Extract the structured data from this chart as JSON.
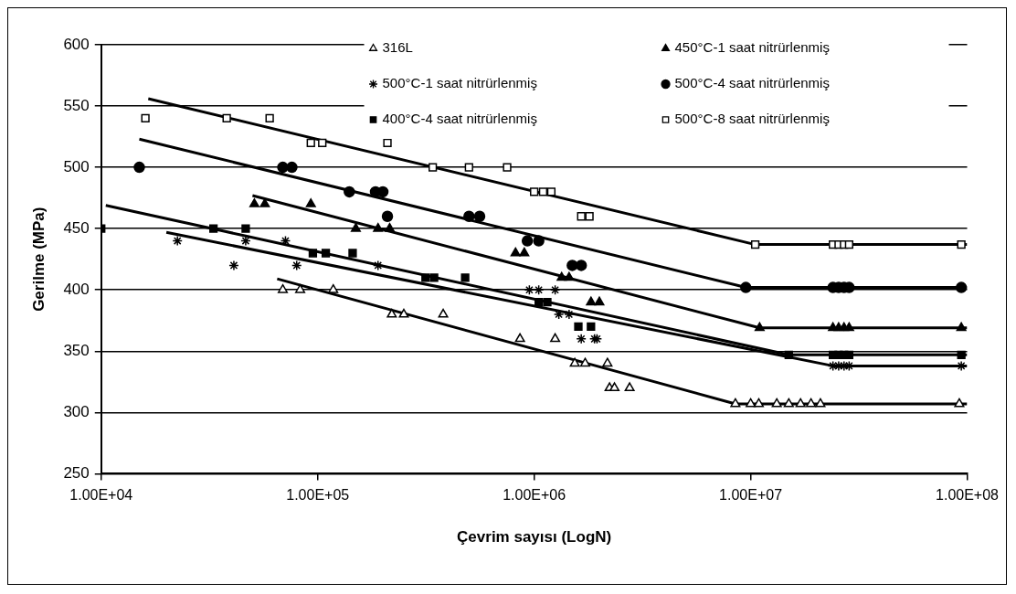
{
  "chart_data": {
    "type": "scatter",
    "xlabel": "Çevrim sayısı (LogN)",
    "ylabel": "Gerilme (MPa)",
    "log": "x",
    "xlim": [
      10000,
      100000000
    ],
    "xticks": [
      {
        "value": 10000,
        "label": "1.00E+04"
      },
      {
        "value": 100000,
        "label": "1.00E+05"
      },
      {
        "value": 1000000,
        "label": "1.00E+06"
      },
      {
        "value": 10000000,
        "label": "1.00E+07"
      },
      {
        "value": 100000000,
        "label": "1.00E+08"
      }
    ],
    "ylim": [
      250,
      600
    ],
    "yticks": [
      250,
      300,
      350,
      400,
      450,
      500,
      550,
      600
    ],
    "grid": "y",
    "legend": "top right",
    "series": [
      {
        "name": "316L",
        "color": "#ffffff",
        "marker": "triangle",
        "x": [
          69000,
          83000,
          118000,
          220000,
          250000,
          380000,
          860000,
          1250000,
          1540000,
          1720000,
          2180000,
          2230000,
          2350000,
          2760000,
          8500000,
          10000000,
          10900000,
          13200000,
          15000000,
          17000000,
          19000000,
          21000000,
          92000000
        ],
        "values": [
          400,
          400,
          400,
          380,
          380,
          380,
          360,
          360,
          340,
          340,
          340,
          320,
          320,
          320,
          307,
          307,
          307,
          307,
          307,
          307,
          307,
          307,
          307
        ]
      },
      {
        "name": "450°C-1 saat nitrürlenmiş",
        "color": "#000000",
        "marker": "triangle",
        "x": [
          51000,
          57000,
          93000,
          150000,
          190000,
          215000,
          820000,
          900000,
          1340000,
          1450000,
          1830000,
          2000000,
          11000000,
          24000000,
          25500000,
          27000000,
          28500000,
          94000000
        ],
        "values": [
          470,
          470,
          470,
          450,
          450,
          450,
          430,
          430,
          410,
          410,
          390,
          390,
          369,
          369,
          369,
          369,
          369,
          369
        ]
      },
      {
        "name": "500°C-1 saat nitrürlenmiş",
        "color": "#000000",
        "marker": "cross",
        "x": [
          22500,
          41000,
          46500,
          71000,
          80000,
          190000,
          950000,
          1050000,
          1250000,
          1300000,
          1450000,
          1650000,
          1900000,
          1950000,
          24000000,
          25500000,
          27000000,
          28500000,
          94000000
        ],
        "values": [
          440,
          420,
          440,
          440,
          420,
          420,
          400,
          400,
          400,
          380,
          380,
          360,
          360,
          360,
          338,
          338,
          338,
          338,
          338
        ]
      },
      {
        "name": "500°C-4 saat nitrürlenmiş",
        "color": "#000000",
        "marker": "circle",
        "x": [
          15000,
          69000,
          76000,
          140000,
          185000,
          200000,
          210000,
          500000,
          560000,
          930000,
          1050000,
          1500000,
          1650000,
          9500000,
          24000000,
          25500000,
          27000000,
          28500000,
          94000000
        ],
        "values": [
          500,
          500,
          500,
          480,
          480,
          480,
          460,
          460,
          460,
          440,
          440,
          420,
          420,
          402,
          402,
          402,
          402,
          402,
          402
        ]
      },
      {
        "name": "400°C-4 saat nitrürlenmiş",
        "color": "#000000",
        "marker": "square",
        "x": [
          10000,
          33000,
          46500,
          95000,
          109000,
          145000,
          315000,
          345000,
          480000,
          1050000,
          1150000,
          1600000,
          1830000,
          15000000,
          24000000,
          25500000,
          27000000,
          28500000,
          94000000
        ],
        "values": [
          450,
          450,
          450,
          430,
          430,
          430,
          410,
          410,
          410,
          390,
          390,
          370,
          370,
          347,
          347,
          347,
          347,
          347,
          347
        ]
      },
      {
        "name": "500°C-8 saat nitrürlenmiş",
        "color": "#ffffff",
        "marker": "square",
        "x": [
          16000,
          38000,
          60000,
          93000,
          105000,
          210000,
          340000,
          500000,
          750000,
          1000000,
          1100000,
          1200000,
          1650000,
          1800000,
          10500000,
          24000000,
          25500000,
          27000000,
          28500000,
          94000000
        ],
        "values": [
          540,
          540,
          540,
          520,
          520,
          520,
          500,
          500,
          500,
          480,
          480,
          480,
          460,
          460,
          437,
          437,
          437,
          437,
          437,
          437
        ]
      },
      {
        "type": "line",
        "color": "#000000",
        "marker": "none",
        "x": [
          65000,
          8500000,
          100000000
        ],
        "values": [
          409,
          307,
          307
        ]
      },
      {
        "type": "line",
        "color": "#000000",
        "marker": "none",
        "x": [
          50000,
          11000000,
          100000000
        ],
        "values": [
          477,
          369,
          369
        ]
      },
      {
        "type": "line",
        "color": "#000000",
        "marker": "none",
        "x": [
          20000,
          24000000,
          100000000
        ],
        "values": [
          447,
          338,
          338
        ]
      },
      {
        "type": "line",
        "color": "#000000",
        "marker": "none",
        "x": [
          15000,
          9500000,
          100000000
        ],
        "values": [
          523,
          402,
          402
        ]
      },
      {
        "type": "line",
        "color": "#000000",
        "marker": "none",
        "x": [
          10500,
          15000000,
          100000000
        ],
        "values": [
          469,
          347,
          347
        ]
      },
      {
        "type": "line",
        "color": "#000000",
        "marker": "none",
        "x": [
          16500,
          10500000,
          100000000
        ],
        "values": [
          556,
          437,
          437
        ]
      }
    ]
  }
}
